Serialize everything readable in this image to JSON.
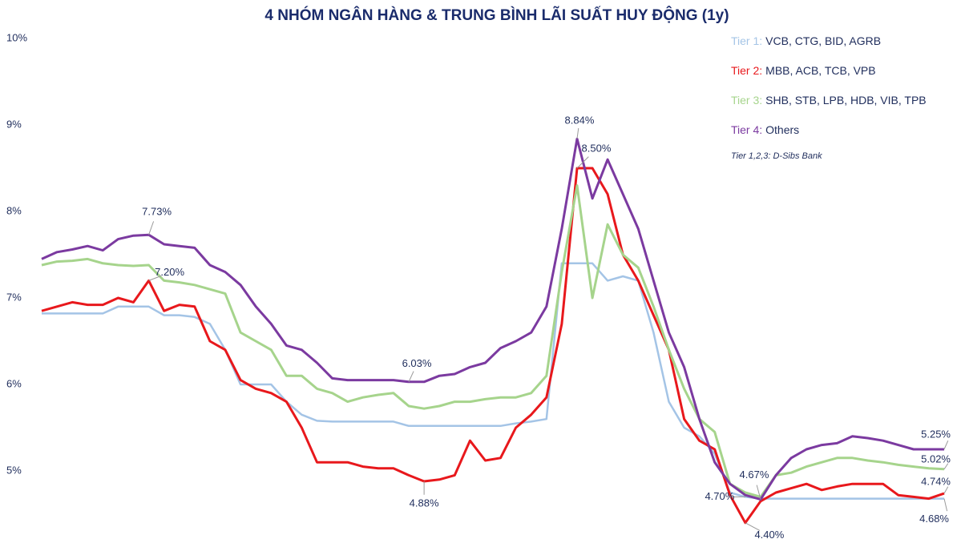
{
  "chart_data": {
    "type": "line",
    "title": "4 NHÓM NGÂN HÀNG & TRUNG BÌNH LÃI SUẤT HUY ĐỘNG (1y)",
    "annotation": "Tier 1,2,3: D-Sibs Bank",
    "ylim": [
      4.25,
      10
    ],
    "yticks": [
      {
        "value": 5,
        "label": "5%"
      },
      {
        "value": 6,
        "label": "6%"
      },
      {
        "value": 7,
        "label": "7%"
      },
      {
        "value": 8,
        "label": "8%"
      },
      {
        "value": 9,
        "label": "9%"
      },
      {
        "value": 10,
        "label": "10%"
      }
    ],
    "grid": false,
    "legend": "top-right",
    "series": [
      {
        "name": "Tier 1:",
        "members": "VCB, CTG, BID, AGRB",
        "color": "#a4c4e6",
        "values": [
          6.82,
          6.82,
          6.82,
          6.82,
          6.82,
          6.9,
          6.9,
          6.9,
          6.8,
          6.8,
          6.78,
          6.7,
          6.4,
          6.0,
          6.0,
          6.0,
          5.8,
          5.65,
          5.58,
          5.57,
          5.57,
          5.57,
          5.57,
          5.57,
          5.52,
          5.52,
          5.52,
          5.52,
          5.52,
          5.52,
          5.52,
          5.55,
          5.57,
          5.6,
          7.4,
          7.4,
          7.4,
          7.2,
          7.25,
          7.2,
          6.6,
          5.8,
          5.5,
          5.4,
          5.2,
          4.75,
          4.7,
          4.68,
          4.68,
          4.68,
          4.68,
          4.68,
          4.68,
          4.68,
          4.68,
          4.68,
          4.68,
          4.68,
          4.68,
          4.68
        ],
        "value_labels": [
          null,
          null,
          null,
          null,
          null,
          null,
          null,
          null,
          null,
          null,
          null,
          null,
          null,
          null,
          null,
          null,
          null,
          null,
          null,
          null,
          null,
          null,
          null,
          null,
          null,
          null,
          null,
          null,
          null,
          null,
          null,
          null,
          null,
          null,
          null,
          null,
          null,
          null,
          null,
          null,
          null,
          null,
          null,
          null,
          null,
          null,
          "4.70%",
          null,
          null,
          null,
          null,
          null,
          null,
          null,
          null,
          null,
          null,
          null,
          null,
          "4.68%"
        ]
      },
      {
        "name": "Tier 2:",
        "members": "MBB, ACB, TCB, VPB",
        "color": "#e8181c",
        "values": [
          6.85,
          6.9,
          6.95,
          6.92,
          6.92,
          7.0,
          6.95,
          7.2,
          6.85,
          6.92,
          6.9,
          6.5,
          6.4,
          6.05,
          5.95,
          5.9,
          5.8,
          5.5,
          5.1,
          5.1,
          5.1,
          5.05,
          5.03,
          5.03,
          4.95,
          4.88,
          4.9,
          4.95,
          5.35,
          5.12,
          5.15,
          5.5,
          5.65,
          5.85,
          6.7,
          8.5,
          8.5,
          8.2,
          7.5,
          7.2,
          6.8,
          6.4,
          5.6,
          5.35,
          5.25,
          4.72,
          4.4,
          4.65,
          4.75,
          4.8,
          4.85,
          4.78,
          4.82,
          4.85,
          4.85,
          4.85,
          4.72,
          4.7,
          4.68,
          4.74
        ],
        "value_labels": [
          null,
          null,
          null,
          null,
          null,
          null,
          null,
          "7.20%",
          null,
          null,
          null,
          null,
          null,
          null,
          null,
          null,
          null,
          null,
          null,
          null,
          null,
          null,
          null,
          null,
          null,
          "4.88%",
          null,
          null,
          null,
          null,
          null,
          null,
          null,
          null,
          null,
          "8.50%",
          null,
          null,
          null,
          null,
          null,
          null,
          null,
          null,
          null,
          null,
          "4.40%",
          null,
          null,
          null,
          null,
          null,
          null,
          null,
          null,
          null,
          null,
          null,
          null,
          "4.74%"
        ]
      },
      {
        "name": "Tier 3:",
        "members": "SHB, STB, LPB, HDB, VIB, TPB",
        "color": "#a6d48c",
        "values": [
          7.38,
          7.42,
          7.43,
          7.45,
          7.4,
          7.38,
          7.37,
          7.38,
          7.2,
          7.18,
          7.15,
          7.1,
          7.05,
          6.6,
          6.5,
          6.4,
          6.1,
          6.1,
          5.95,
          5.9,
          5.8,
          5.85,
          5.88,
          5.9,
          5.75,
          5.72,
          5.75,
          5.8,
          5.8,
          5.83,
          5.85,
          5.85,
          5.9,
          6.1,
          7.3,
          8.3,
          7.0,
          7.85,
          7.5,
          7.35,
          6.9,
          6.4,
          5.95,
          5.6,
          5.45,
          4.85,
          4.75,
          4.7,
          4.95,
          4.98,
          5.05,
          5.1,
          5.15,
          5.15,
          5.12,
          5.1,
          5.07,
          5.05,
          5.03,
          5.02
        ],
        "value_labels": [
          null,
          null,
          null,
          null,
          null,
          null,
          null,
          null,
          null,
          null,
          null,
          null,
          null,
          null,
          null,
          null,
          null,
          null,
          null,
          null,
          null,
          null,
          null,
          null,
          null,
          null,
          null,
          null,
          null,
          null,
          null,
          null,
          null,
          null,
          null,
          null,
          null,
          null,
          null,
          null,
          null,
          null,
          null,
          null,
          null,
          null,
          null,
          null,
          null,
          null,
          null,
          null,
          null,
          null,
          null,
          null,
          null,
          null,
          null,
          "5.02%"
        ]
      },
      {
        "name": "Tier 4:",
        "members": "Others",
        "color": "#7b3aa0",
        "values": [
          7.45,
          7.53,
          7.56,
          7.6,
          7.55,
          7.68,
          7.72,
          7.73,
          7.62,
          7.6,
          7.58,
          7.38,
          7.3,
          7.15,
          6.9,
          6.7,
          6.45,
          6.4,
          6.25,
          6.07,
          6.05,
          6.05,
          6.05,
          6.05,
          6.03,
          6.03,
          6.1,
          6.12,
          6.2,
          6.25,
          6.42,
          6.5,
          6.6,
          6.9,
          7.8,
          8.84,
          8.15,
          8.6,
          8.2,
          7.8,
          7.2,
          6.6,
          6.2,
          5.6,
          5.1,
          4.85,
          4.72,
          4.67,
          4.95,
          5.15,
          5.25,
          5.3,
          5.32,
          5.4,
          5.38,
          5.35,
          5.3,
          5.25,
          5.25,
          5.25
        ],
        "value_labels": [
          null,
          null,
          null,
          null,
          null,
          null,
          null,
          "7.73%",
          null,
          null,
          null,
          null,
          null,
          null,
          null,
          null,
          null,
          null,
          null,
          null,
          null,
          null,
          null,
          null,
          "6.03%",
          null,
          null,
          null,
          null,
          null,
          null,
          null,
          null,
          null,
          null,
          "8.84%",
          null,
          null,
          null,
          null,
          null,
          null,
          null,
          null,
          null,
          null,
          null,
          "4.67%",
          null,
          null,
          null,
          null,
          null,
          null,
          null,
          null,
          null,
          null,
          null,
          "5.25%"
        ]
      }
    ]
  }
}
